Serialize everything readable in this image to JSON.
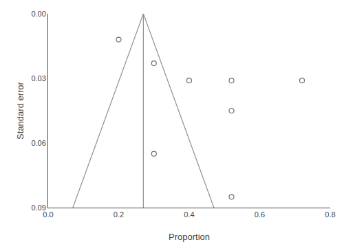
{
  "chart_data": {
    "type": "scatter",
    "xlabel": "Proportion",
    "ylabel": "Standard error",
    "xlim": [
      0.0,
      0.8
    ],
    "ylim": [
      0.09,
      0.0
    ],
    "xticks": [
      {
        "value": 0.0,
        "label": "0.0"
      },
      0.2,
      0.4,
      0.6,
      0.8
    ],
    "yticks": [
      {
        "value": 0.0,
        "label": "0.00"
      },
      0.03,
      0.06,
      0.09
    ],
    "grid": false,
    "series": [
      {
        "type": "line",
        "color": "#909090",
        "x": [
          0.27,
          0.07
        ],
        "values": [
          0.0,
          0.09
        ]
      },
      {
        "type": "line",
        "color": "#909090",
        "x": [
          0.27,
          0.47
        ],
        "values": [
          0.0,
          0.09
        ]
      },
      {
        "type": "line",
        "color": "#909090",
        "x": [
          0.27,
          0.27
        ],
        "values": [
          0.0,
          0.09
        ]
      },
      {
        "type": "scatter",
        "color": "#707070",
        "marker": "open circle",
        "x": [
          0.2,
          0.3,
          0.4,
          0.3,
          0.52,
          0.52,
          0.72,
          0.52
        ],
        "values": [
          0.012,
          0.023,
          0.031,
          0.065,
          0.045,
          0.031,
          0.031,
          0.085
        ]
      }
    ]
  }
}
